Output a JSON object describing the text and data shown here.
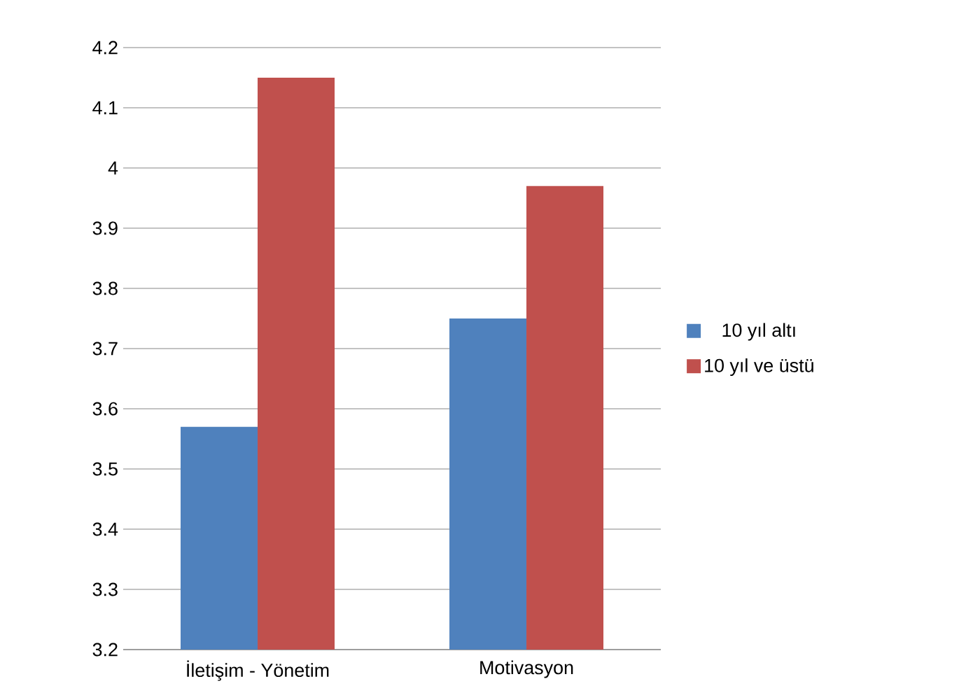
{
  "chart_data": {
    "type": "bar",
    "categories": [
      "İletişim - Yönetim",
      "Motivasyon"
    ],
    "series": [
      {
        "name": "10 yıl altı",
        "color": "#4f81bd",
        "values": [
          3.57,
          3.75
        ]
      },
      {
        "name": "10 yıl ve üstü",
        "color": "#c0504d",
        "values": [
          4.15,
          3.97
        ]
      }
    ],
    "ylim": [
      3.2,
      4.2
    ],
    "yticks": [
      3.2,
      3.3,
      3.4,
      3.5,
      3.6,
      3.7,
      3.8,
      3.9,
      4,
      4.1,
      4.2
    ],
    "grid": "y",
    "legend": "right"
  }
}
